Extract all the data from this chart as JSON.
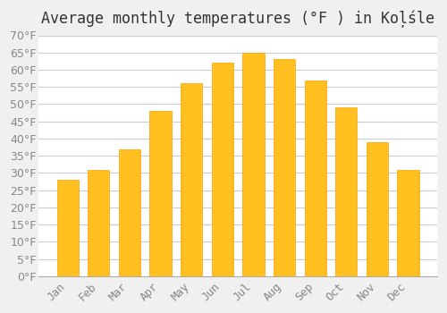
{
  "title": "Average monthly temperatures (°F ) in Koļśle",
  "months": [
    "Jan",
    "Feb",
    "Mar",
    "Apr",
    "May",
    "Jun",
    "Jul",
    "Aug",
    "Sep",
    "Oct",
    "Nov",
    "Dec"
  ],
  "values": [
    28,
    31,
    37,
    48,
    56,
    62,
    65,
    63,
    57,
    49,
    39,
    31
  ],
  "bar_color": "#FFC020",
  "bar_edge_color": "#FFA000",
  "background_color": "#F0F0F0",
  "plot_bg_color": "#FFFFFF",
  "grid_color": "#CCCCCC",
  "text_color": "#888888",
  "ylim": [
    0,
    70
  ],
  "ytick_step": 5,
  "title_fontsize": 12,
  "tick_fontsize": 9
}
